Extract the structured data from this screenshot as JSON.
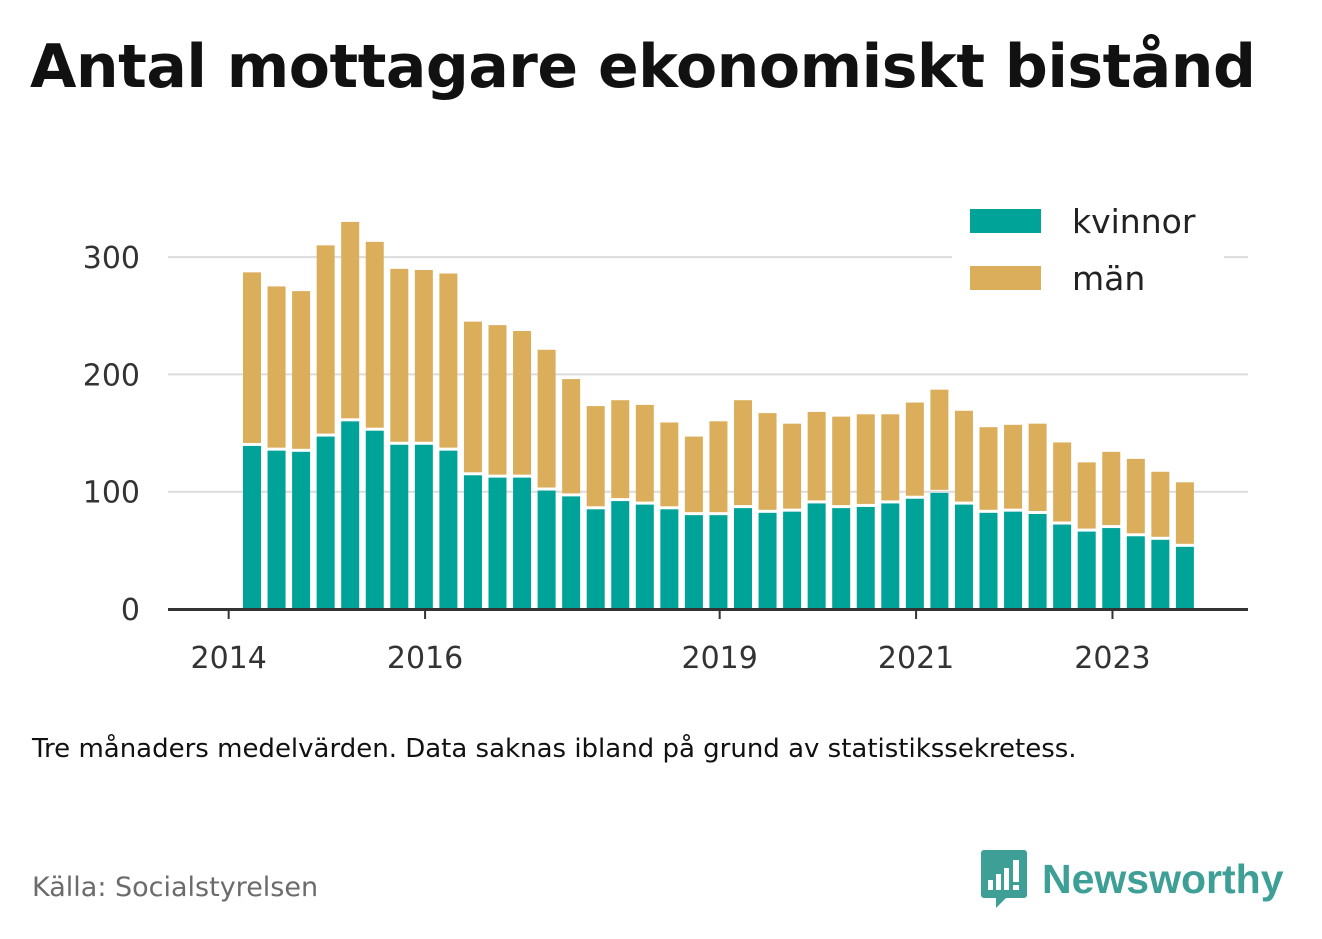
{
  "title": "Antal mottagare ekonomiskt bistånd",
  "note": "Tre månaders medelvärden. Data saknas ibland på grund av statistikssekretess.",
  "source": "Källa: Socialstyrelsen",
  "brand": "Newsworthy",
  "colors": {
    "kvinnor": "#00a398",
    "man": "#dbae5c",
    "grid": "#dcdcdc",
    "axis": "#333333",
    "brand": "#3e9f97"
  },
  "chart_data": {
    "type": "bar",
    "stacked": true,
    "legend_position": "top-right",
    "grid": true,
    "ylim": [
      0,
      340
    ],
    "yticks": [
      0,
      100,
      200,
      300
    ],
    "xticks": [
      {
        "label": "2014",
        "index": -0.95
      },
      {
        "label": "2016",
        "index": 7.05
      },
      {
        "label": "2019",
        "index": 19.05
      },
      {
        "label": "2021",
        "index": 27.05
      },
      {
        "label": "2023",
        "index": 35.05
      }
    ],
    "series": [
      {
        "name": "kvinnor",
        "values": [
          139,
          135,
          134,
          147,
          160,
          152,
          140,
          140,
          135,
          114,
          112,
          112,
          101,
          96,
          85,
          92,
          89,
          85,
          80,
          80,
          86,
          82,
          83,
          90,
          86,
          87,
          90,
          94,
          99,
          89,
          82,
          83,
          81,
          72,
          66,
          69,
          62,
          59,
          53
        ]
      },
      {
        "name": "män",
        "values": [
          148,
          140,
          137,
          163,
          170,
          161,
          150,
          149,
          151,
          131,
          130,
          125,
          120,
          100,
          88,
          86,
          85,
          74,
          67,
          80,
          92,
          85,
          75,
          78,
          78,
          79,
          76,
          82,
          88,
          80,
          73,
          74,
          77,
          70,
          59,
          65,
          66,
          58,
          55
        ]
      }
    ]
  }
}
